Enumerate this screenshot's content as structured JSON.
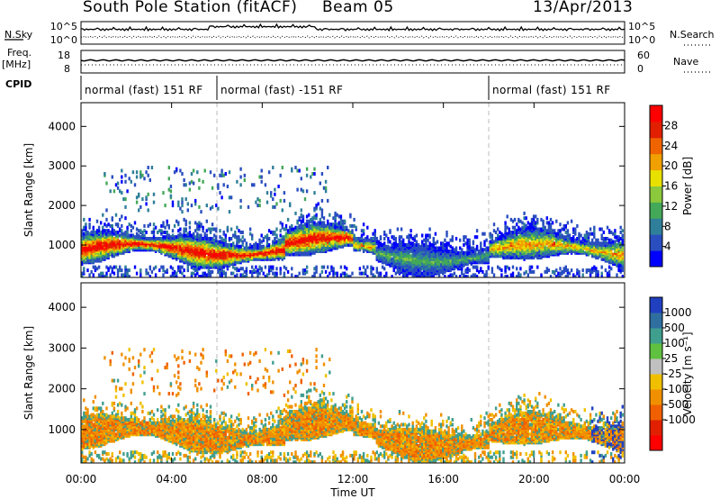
{
  "header": {
    "station": "South Pole Station (fitACF)",
    "beam": "Beam 05",
    "date": "13/Apr/2013"
  },
  "side_labels": {
    "nsky": "N.Sky",
    "freq": "Freq.",
    "freq_unit": "[MHz]",
    "cpid": "CPID",
    "nsearch": "N.Search",
    "nave": "Nave"
  },
  "noise_panel": {
    "left_ticks": [
      "10^5",
      "10^0"
    ],
    "right_ticks": [
      "10^5",
      "10^0"
    ]
  },
  "freq_panel": {
    "left_ticks": [
      "18",
      "8"
    ],
    "right_ticks": [
      "60",
      "0"
    ]
  },
  "cpid_segments": [
    {
      "label": "normal (fast) 151 RF",
      "start_h": 0,
      "end_h": 6
    },
    {
      "label": "normal (fast) -151 RF",
      "start_h": 6,
      "end_h": 18
    },
    {
      "label": "normal (fast) 151 RF",
      "start_h": 18,
      "end_h": 24
    }
  ],
  "chart_data": [
    {
      "type": "heatmap",
      "quantity": "Power",
      "ylabel": "Slant Range [km]",
      "ylim": [
        180,
        4600
      ],
      "yticks": [
        1000,
        2000,
        3000,
        4000
      ],
      "colorbar_label": "Power [dB]",
      "colorbar_ticks": [
        4,
        8,
        12,
        16,
        20,
        24,
        28
      ],
      "colorbar_range": [
        0,
        32
      ],
      "colorbar_colors": [
        "#0000ff",
        "#2a4ec0",
        "#2f7f9a",
        "#43a858",
        "#8cc83c",
        "#e8e000",
        "#f0a000",
        "#f06400",
        "#e02000",
        "#ff0000"
      ]
    },
    {
      "type": "heatmap",
      "quantity": "Velocity",
      "ylabel": "Slant Range [km]",
      "ylim": [
        180,
        4600
      ],
      "yticks": [
        1000,
        2000,
        3000,
        4000
      ],
      "colorbar_label": "Velocity [m s⁻¹]",
      "colorbar_ticks": [
        "1000",
        "500",
        "100",
        "25",
        "-25",
        "-100",
        "-500",
        "-1000"
      ],
      "colorbar_colors": [
        "#2040c0",
        "#2f6fa0",
        "#3f9f8f",
        "#60c040",
        "#c0c0c0",
        "#f0c000",
        "#f09000",
        "#f06000",
        "#e02000",
        "#ff0000"
      ]
    }
  ],
  "xaxis": {
    "label": "Time UT",
    "ticks": [
      "00:00",
      "04:00",
      "08:00",
      "12:00",
      "16:00",
      "20:00",
      "00:00"
    ],
    "range_h": [
      0,
      24
    ],
    "dashed_lines_h": [
      6,
      18
    ]
  }
}
